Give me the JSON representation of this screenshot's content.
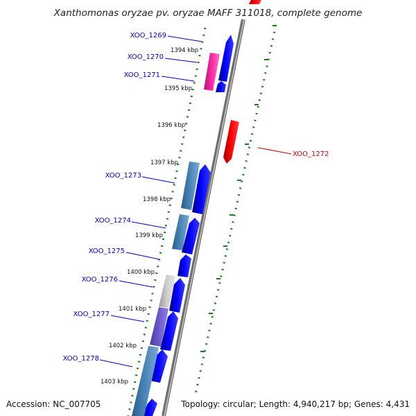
{
  "title": "Xanthomonas oryzae pv. oryzae MAFF 311018, complete genome",
  "accession": "Accession: NC_007705",
  "summary": "Topology: circular; Length: 4,940,217 bp; Genes: 4,431",
  "colors": {
    "backbone": "#8a8a8a",
    "tick": "#1a7a1a",
    "forward_gene": "#0000ee",
    "reverse_gene": "#ee0000",
    "label_forward": "#0000cc",
    "label_reverse": "#cc0000"
  },
  "kbp_labels": [
    "1394 kbp",
    "1395 kbp",
    "1396 kbp",
    "1397 kbp",
    "1398 kbp",
    "1399 kbp",
    "1400 kbp",
    "1401 kbp",
    "1402 kbp",
    "1403 kbp"
  ],
  "gene_labels": [
    {
      "name": "XOO_1269",
      "strand": "forward"
    },
    {
      "name": "XOO_1270",
      "strand": "forward"
    },
    {
      "name": "XOO_1271",
      "strand": "forward"
    },
    {
      "name": "XOO_1272",
      "strand": "reverse"
    },
    {
      "name": "XOO_1273",
      "strand": "forward"
    },
    {
      "name": "XOO_1274",
      "strand": "forward"
    },
    {
      "name": "XOO_1275",
      "strand": "forward"
    },
    {
      "name": "XOO_1276",
      "strand": "forward"
    },
    {
      "name": "XOO_1277",
      "strand": "forward"
    },
    {
      "name": "XOO_1278",
      "strand": "forward"
    }
  ]
}
